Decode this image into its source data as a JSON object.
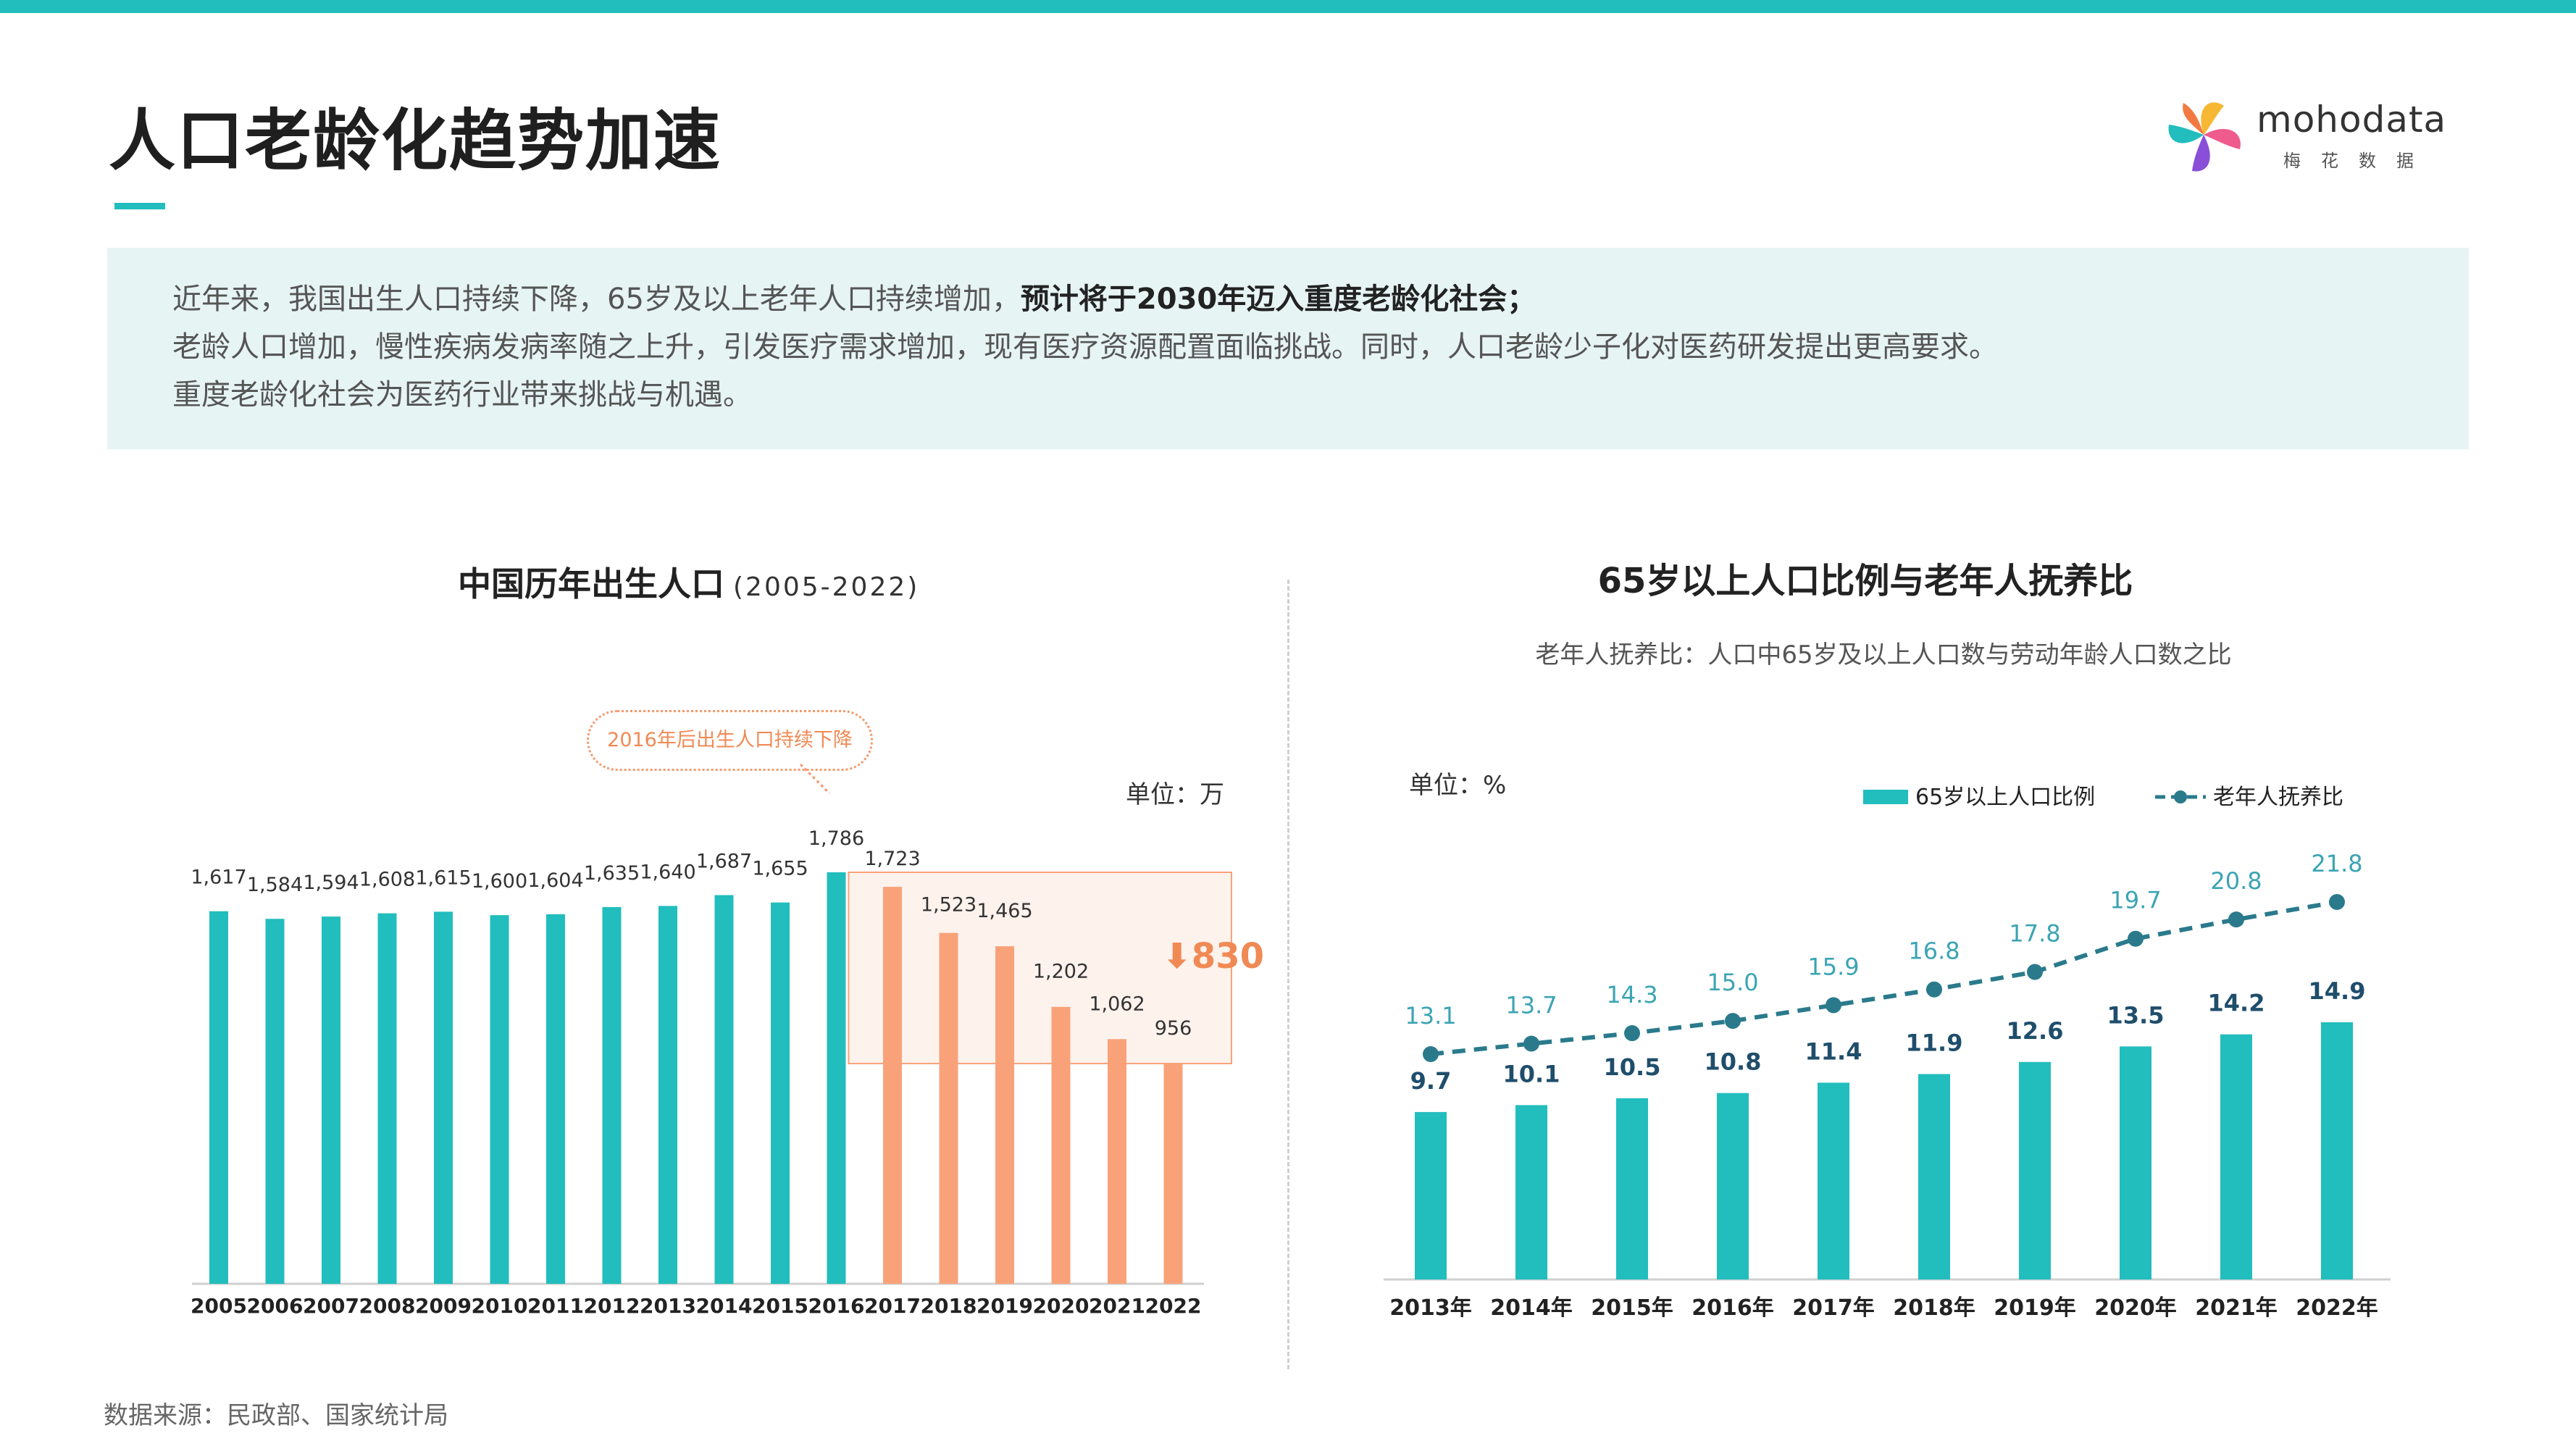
{
  "title": "人口老龄化趋势加速",
  "logo": {
    "name_prefix": "moho",
    "name_suffix": "data",
    "subtitle": "梅花数据"
  },
  "summary": {
    "line1_plain": "近年来，我国出生人口持续下降，65岁及以上老年人口持续增加，",
    "line1_bold": "预计将于2030年迈入重度老龄化社会；",
    "line2": "老龄人口增加，慢性疾病发病率随之上升，引发医疗需求增加，现有医疗资源配置面临挑战。同时，人口老龄少子化对医药研发提出更高要求。",
    "line3": "重度老龄化社会为医药行业带来挑战与机遇。"
  },
  "source": "数据来源：民政部、国家统计局",
  "colors": {
    "teal": "#22bdbd",
    "orange": "#f9a27a",
    "dark_teal": "#2a7a8c",
    "navy": "#1f4e6b",
    "callout": "#f08a55"
  },
  "chart_data": [
    {
      "type": "bar",
      "title": "中国历年出生人口",
      "title_suffix": "(2005-2022)",
      "unit_label": "单位：万",
      "categories": [
        "2005",
        "2006",
        "2007",
        "2008",
        "2009",
        "2010",
        "2011",
        "2012",
        "2013",
        "2014",
        "2015",
        "2016",
        "2017",
        "2018",
        "2019",
        "2020",
        "2021",
        "2022"
      ],
      "values": [
        1617,
        1584,
        1594,
        1608,
        1615,
        1600,
        1604,
        1635,
        1640,
        1687,
        1655,
        1786,
        1723,
        1523,
        1465,
        1202,
        1062,
        956
      ],
      "labels": [
        "1,617",
        "1,584",
        "1,594",
        "1,608",
        "1,615",
        "1,600",
        "1,604",
        "1,635",
        "1,640",
        "1,687",
        "1,655",
        "1,786",
        "1,723",
        "1,523",
        "1,465",
        "1,202",
        "1,062",
        "956"
      ],
      "highlight_from_index": 12,
      "annotation": "2016年后出生人口持续下降",
      "drop_label": "830",
      "ylim": [
        0,
        1800
      ]
    },
    {
      "type": "bar+line",
      "title": "65岁以上人口比例与老年人抚养比",
      "subtitle": "老年人抚养比：人口中65岁及以上人口数与劳动年龄人口数之比",
      "unit_label": "单位：%",
      "categories": [
        "2013年",
        "2014年",
        "2015年",
        "2016年",
        "2017年",
        "2018年",
        "2019年",
        "2020年",
        "2021年",
        "2022年"
      ],
      "series": [
        {
          "name": "65岁以上人口比例",
          "kind": "bar",
          "values": [
            9.7,
            10.1,
            10.5,
            10.8,
            11.4,
            11.9,
            12.6,
            13.5,
            14.2,
            14.9
          ],
          "labels": [
            "9.7",
            "10.1",
            "10.5",
            "10.8",
            "11.4",
            "11.9",
            "12.6",
            "13.5",
            "14.2",
            "14.9"
          ]
        },
        {
          "name": "老年人抚养比",
          "kind": "line",
          "values": [
            13.1,
            13.7,
            14.3,
            15.0,
            15.9,
            16.8,
            17.8,
            19.7,
            20.8,
            21.8
          ],
          "labels": [
            "13.1",
            "13.7",
            "14.3",
            "15.0",
            "15.9",
            "16.8",
            "17.8",
            "19.7",
            "20.8",
            "21.8"
          ]
        }
      ],
      "legend_position": "top-right"
    }
  ]
}
